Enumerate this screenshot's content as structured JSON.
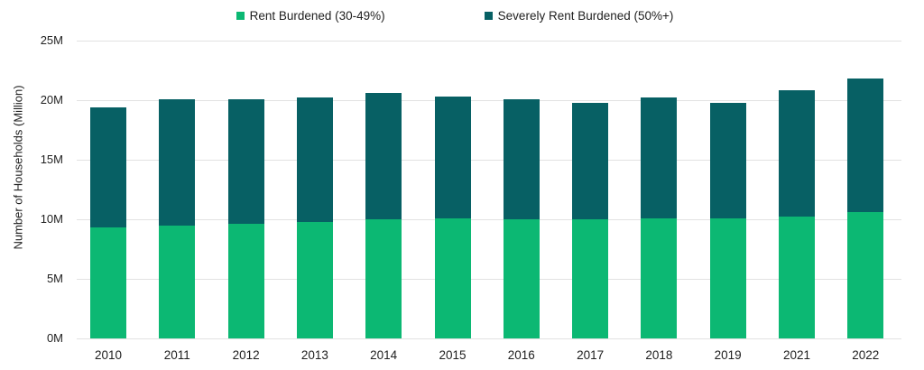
{
  "chart_data": {
    "type": "bar",
    "stacked": true,
    "title": "",
    "ylabel": "Number of Households (Million)",
    "xlabel": "",
    "categories": [
      "2010",
      "2011",
      "2012",
      "2013",
      "2014",
      "2015",
      "2016",
      "2017",
      "2018",
      "2019",
      "2021",
      "2022"
    ],
    "series": [
      {
        "name": "Rent Burdened (30-49%)",
        "color": "#0cb873",
        "values": [
          9.3,
          9.5,
          9.6,
          9.8,
          10.0,
          10.1,
          10.0,
          10.0,
          10.1,
          10.1,
          10.2,
          10.6
        ]
      },
      {
        "name": "Severely Rent Burdened (50%+)",
        "color": "#076064",
        "values": [
          10.1,
          10.6,
          10.5,
          10.4,
          10.6,
          10.2,
          10.1,
          9.8,
          10.1,
          9.7,
          10.6,
          11.2
        ]
      }
    ],
    "stacked_totals": [
      19.4,
      20.1,
      20.1,
      20.2,
      20.6,
      20.3,
      20.1,
      19.8,
      20.2,
      19.8,
      20.8,
      21.8
    ],
    "ylim": [
      0,
      25
    ],
    "ytick_step": 5,
    "ytick_labels": [
      "0M",
      "5M",
      "10M",
      "15M",
      "20M",
      "25M"
    ],
    "legend_position": "top",
    "grid": "horizontal",
    "gridline_color": "#e2e2e2",
    "text_color": "#212121",
    "background_color": "#ffffff"
  }
}
